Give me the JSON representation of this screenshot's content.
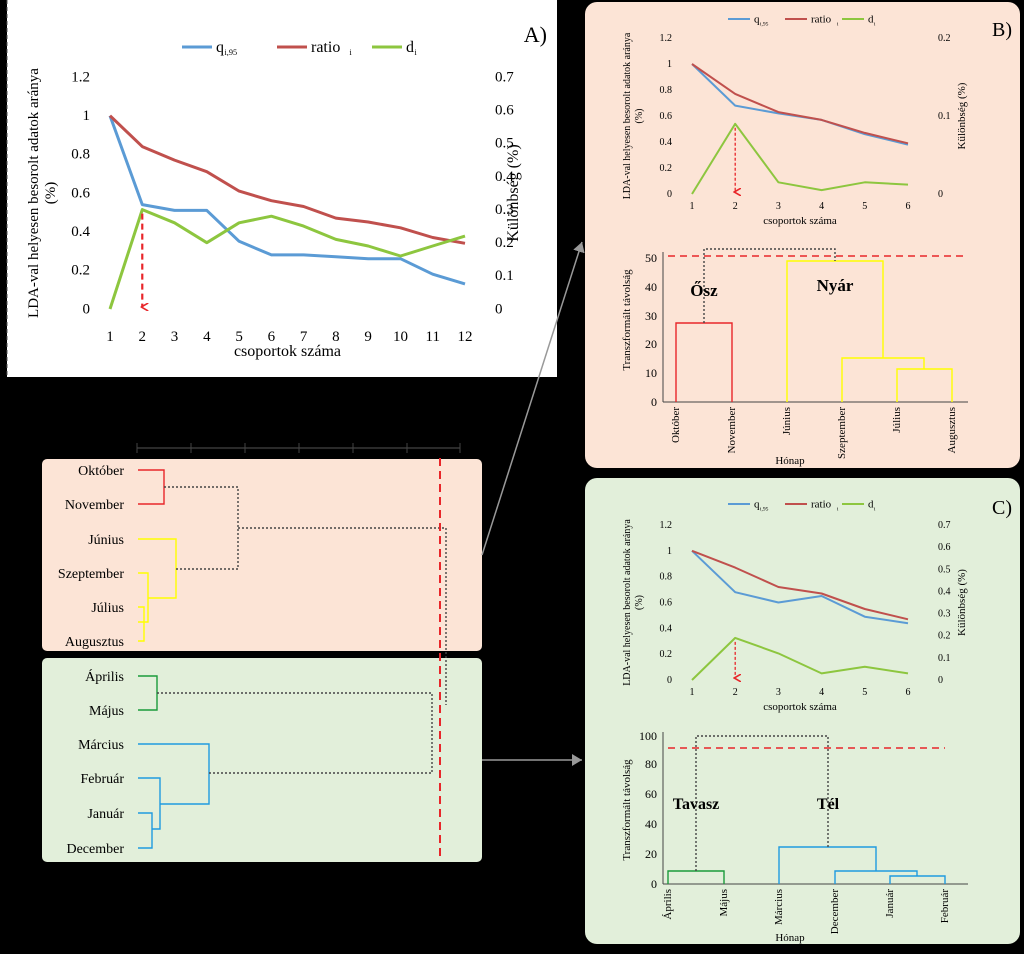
{
  "colors": {
    "blue": "#5b9bd5",
    "red": "#c0504d",
    "green": "#8dc63f",
    "dashed_red": "#e8262a",
    "summer_bg": "#fce4d6",
    "spring_bg": "#e2efda",
    "yellow": "#ffff00",
    "dark_green": "#1a9c3a",
    "cyan_blue": "#1f9be0",
    "dendro_red": "#e8262a"
  },
  "chart_data": [
    {
      "id": "A",
      "type": "line",
      "panel_label": "A)",
      "legend": [
        "q",
        "ratio",
        "d"
      ],
      "legend_sub": [
        "i,95",
        "i",
        "i"
      ],
      "xlabel": "csoportok száma",
      "ylabel_left": "LDA-val helyesen besorolt adatok aránya (%)",
      "ylabel_right": "Különbség (%)",
      "x": [
        1,
        2,
        3,
        4,
        5,
        6,
        7,
        8,
        9,
        10,
        11,
        12
      ],
      "x_ticks": [
        "1",
        "2",
        "3",
        "4",
        "5",
        "6",
        "7",
        "8",
        "9",
        "10",
        "11",
        "12"
      ],
      "y_left_ticks": [
        "0",
        "0.2",
        "0.4",
        "0.6",
        "0.8",
        "1",
        "1.2"
      ],
      "y_right_ticks": [
        "0",
        "0.1",
        "0.2",
        "0.3",
        "0.4",
        "0.5",
        "0.6",
        "0.7"
      ],
      "ylim_left": [
        0,
        1.2
      ],
      "ylim_right": [
        0,
        0.7
      ],
      "series": [
        {
          "name": "q_i,95",
          "axis": "left",
          "values": [
            1.0,
            0.54,
            0.51,
            0.51,
            0.35,
            0.28,
            0.28,
            0.27,
            0.26,
            0.26,
            0.18,
            0.13
          ]
        },
        {
          "name": "ratio_i",
          "axis": "left",
          "values": [
            1.0,
            0.84,
            0.77,
            0.71,
            0.61,
            0.56,
            0.53,
            0.47,
            0.45,
            0.42,
            0.37,
            0.34
          ]
        },
        {
          "name": "d_i",
          "axis": "right",
          "values": [
            0.0,
            0.3,
            0.26,
            0.2,
            0.26,
            0.28,
            0.25,
            0.21,
            0.19,
            0.16,
            0.19,
            0.22
          ]
        }
      ],
      "arrow_at": 2
    },
    {
      "id": "B",
      "type": "line",
      "panel_label": "B)",
      "legend": [
        "q",
        "ratio",
        "d"
      ],
      "legend_sub": [
        "i,95",
        "i",
        "i"
      ],
      "xlabel": "csoportok száma",
      "ylabel_left": "LDA-val helyesen besorolt adatok aránya (%)",
      "ylabel_right": "Különbség (%)",
      "x": [
        1,
        2,
        3,
        4,
        5,
        6
      ],
      "x_ticks": [
        "1",
        "2",
        "3",
        "4",
        "5",
        "6"
      ],
      "y_left_ticks": [
        "0",
        "0.2",
        "0.4",
        "0.6",
        "0.8",
        "1",
        "1.2"
      ],
      "y_right_ticks": [
        "0",
        "0.1",
        "0.2"
      ],
      "ylim_left": [
        0,
        1.2
      ],
      "ylim_right": [
        0,
        0.2
      ],
      "series": [
        {
          "name": "q_i,95",
          "axis": "left",
          "values": [
            1.0,
            0.68,
            0.62,
            0.57,
            0.46,
            0.38
          ]
        },
        {
          "name": "ratio_i",
          "axis": "left",
          "values": [
            1.0,
            0.77,
            0.63,
            0.57,
            0.47,
            0.39
          ]
        },
        {
          "name": "d_i",
          "axis": "right",
          "values": [
            0.0,
            0.09,
            0.015,
            0.005,
            0.015,
            0.012
          ]
        }
      ],
      "arrow_at": 2
    },
    {
      "id": "C",
      "type": "line",
      "panel_label": "C)",
      "legend": [
        "q",
        "ratio",
        "d"
      ],
      "legend_sub": [
        "i,95",
        "i",
        "i"
      ],
      "xlabel": "csoportok száma",
      "ylabel_left": "LDA-val helyesen besorolt adatok aránya (%)",
      "ylabel_right": "Különbség (%)",
      "x": [
        1,
        2,
        3,
        4,
        5,
        6
      ],
      "x_ticks": [
        "1",
        "2",
        "3",
        "4",
        "5",
        "6"
      ],
      "y_left_ticks": [
        "0",
        "0.2",
        "0.4",
        "0.6",
        "0.8",
        "1",
        "1.2"
      ],
      "y_right_ticks": [
        "0",
        "0.1",
        "0.2",
        "0.3",
        "0.4",
        "0.5",
        "0.6",
        "0.7"
      ],
      "ylim_left": [
        0,
        1.2
      ],
      "ylim_right": [
        0,
        0.7
      ],
      "series": [
        {
          "name": "q_i,95",
          "axis": "left",
          "values": [
            1.0,
            0.68,
            0.6,
            0.65,
            0.49,
            0.44
          ]
        },
        {
          "name": "ratio_i",
          "axis": "left",
          "values": [
            1.0,
            0.87,
            0.72,
            0.67,
            0.55,
            0.47
          ]
        },
        {
          "name": "d_i",
          "axis": "right",
          "values": [
            0.0,
            0.19,
            0.12,
            0.03,
            0.06,
            0.03
          ]
        }
      ],
      "arrow_at": 2
    }
  ],
  "dendrogram_b": {
    "ylabel": "Transzformált távolság",
    "xlabel": "Hónap",
    "y_ticks": [
      "0",
      "10",
      "20",
      "30",
      "40",
      "50"
    ],
    "leaves": [
      "Október",
      "November",
      "Június",
      "Szeptember",
      "Július",
      "Augusztus"
    ],
    "group_labels": [
      "Ősz",
      "Nyár"
    ],
    "cut_height": 49
  },
  "dendrogram_c": {
    "ylabel": "Transzformált távolság",
    "xlabel": "Hónap",
    "y_ticks": [
      "0",
      "20",
      "40",
      "60",
      "80",
      "100"
    ],
    "leaves": [
      "Április",
      "Május",
      "Március",
      "December",
      "Január",
      "Február"
    ],
    "group_labels": [
      "Tavasz",
      "Tél"
    ],
    "cut_height": 91
  },
  "main_dendrogram": {
    "summer_leaves": [
      "Október",
      "November",
      "Június",
      "Szeptember",
      "Július",
      "Augusztus"
    ],
    "spring_leaves": [
      "Április",
      "Május",
      "Március",
      "Február",
      "Január",
      "December"
    ]
  }
}
